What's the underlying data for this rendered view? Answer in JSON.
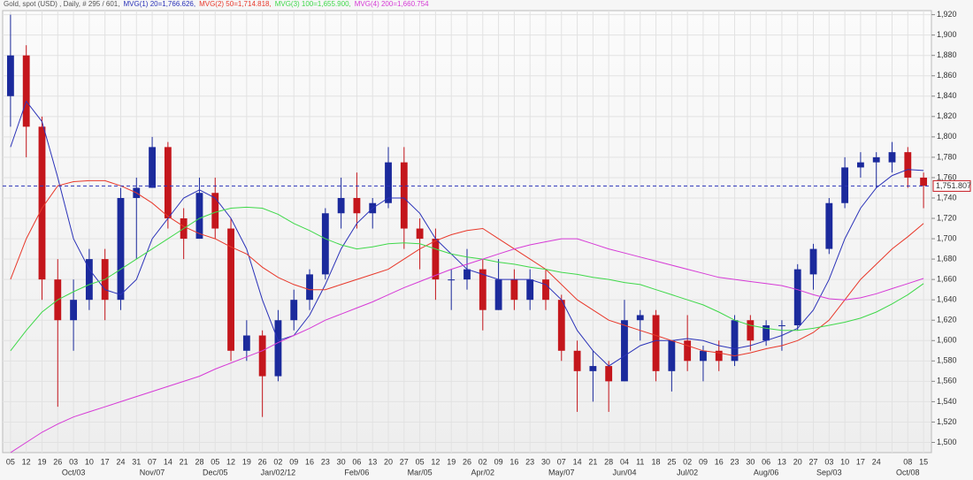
{
  "chart_data": {
    "type": "candlestick",
    "header": "Gold, spot (USD) , Daily, # 295 / 601,",
    "categories": [
      "05",
      "12",
      "19",
      "26",
      "03",
      "10",
      "17",
      "24",
      "31",
      "07",
      "14",
      "21",
      "28",
      "05",
      "12",
      "19",
      "26",
      "02",
      "09",
      "16",
      "23",
      "30",
      "06",
      "13",
      "20",
      "27",
      "05",
      "12",
      "19",
      "26",
      "02",
      "09",
      "16",
      "23",
      "30",
      "07",
      "14",
      "21",
      "28",
      "04",
      "11",
      "18",
      "25",
      "02",
      "09",
      "16",
      "23",
      "30",
      "06",
      "13",
      "20",
      "27",
      "03",
      "10",
      "17",
      "24",
      null,
      "08",
      "15"
    ],
    "months": [
      null,
      null,
      null,
      null,
      "Oct/03",
      null,
      null,
      null,
      null,
      "Nov/07",
      null,
      null,
      null,
      "Dec/05",
      null,
      null,
      null,
      "Jan/02/12",
      null,
      null,
      null,
      null,
      "Feb/06",
      null,
      null,
      null,
      "Mar/05",
      null,
      null,
      null,
      "Apr/02",
      null,
      null,
      null,
      null,
      "May/07",
      null,
      null,
      null,
      "Jun/04",
      null,
      null,
      null,
      "Jul/02",
      null,
      null,
      null,
      null,
      "Aug/06",
      null,
      null,
      null,
      "Sep/03",
      null,
      null,
      null,
      null,
      "Oct/08",
      null
    ],
    "open": [
      1840,
      1880,
      1810,
      1660,
      1620,
      1640,
      1680,
      1640,
      1740,
      1750,
      1790,
      1720,
      1700,
      1745,
      1710,
      1590,
      1605,
      1565,
      1620,
      1640,
      1665,
      1725,
      1740,
      1725,
      1735,
      1775,
      1710,
      1700,
      1660,
      1660,
      1670,
      1630,
      1660,
      1640,
      1660,
      1640,
      1590,
      1570,
      1575,
      1560,
      1620,
      1625,
      1570,
      1600,
      1580,
      1590,
      1580,
      1620,
      1600,
      1615,
      1615,
      1665,
      1690,
      1735,
      1770,
      1775,
      1775,
      1785,
      1760
    ],
    "high": [
      1920,
      1890,
      1820,
      1680,
      1660,
      1690,
      1690,
      1750,
      1760,
      1800,
      1795,
      1730,
      1760,
      1760,
      1720,
      1620,
      1610,
      1630,
      1650,
      1670,
      1730,
      1760,
      1765,
      1740,
      1790,
      1790,
      1720,
      1710,
      1670,
      1690,
      1680,
      1680,
      1670,
      1670,
      1670,
      1645,
      1600,
      1590,
      1580,
      1640,
      1630,
      1630,
      1600,
      1625,
      1595,
      1600,
      1625,
      1625,
      1620,
      1620,
      1675,
      1695,
      1740,
      1780,
      1785,
      1785,
      1795,
      1790,
      1765
    ],
    "low": [
      1810,
      1780,
      1640,
      1535,
      1590,
      1630,
      1620,
      1630,
      1680,
      1750,
      1710,
      1680,
      1700,
      1700,
      1580,
      1580,
      1525,
      1560,
      1610,
      1630,
      1660,
      1710,
      1710,
      1710,
      1730,
      1690,
      1670,
      1640,
      1630,
      1650,
      1610,
      1630,
      1630,
      1630,
      1630,
      1580,
      1530,
      1540,
      1530,
      1560,
      1600,
      1560,
      1550,
      1570,
      1560,
      1570,
      1575,
      1590,
      1595,
      1590,
      1610,
      1650,
      1685,
      1730,
      1760,
      1750,
      1765,
      1750,
      1730
    ],
    "close": [
      1880,
      1810,
      1660,
      1620,
      1640,
      1680,
      1640,
      1740,
      1750,
      1790,
      1720,
      1700,
      1745,
      1710,
      1590,
      1605,
      1565,
      1620,
      1640,
      1665,
      1725,
      1740,
      1725,
      1735,
      1775,
      1710,
      1700,
      1660,
      1660,
      1670,
      1630,
      1660,
      1640,
      1660,
      1640,
      1590,
      1570,
      1575,
      1560,
      1620,
      1625,
      1570,
      1600,
      1580,
      1590,
      1580,
      1620,
      1600,
      1615,
      1615,
      1670,
      1690,
      1735,
      1770,
      1775,
      1780,
      1785,
      1760,
      1752
    ],
    "up_color": "#1b2a9c",
    "down_color": "#c4161c",
    "moving_averages": [
      {
        "name": "MVG(1) 20=1,766.626,",
        "color": "#2a32b8",
        "values": [
          1790,
          1835,
          1815,
          1760,
          1700,
          1670,
          1650,
          1645,
          1660,
          1700,
          1720,
          1740,
          1748,
          1740,
          1720,
          1690,
          1640,
          1600,
          1605,
          1625,
          1655,
          1690,
          1715,
          1730,
          1740,
          1740,
          1725,
          1700,
          1685,
          1670,
          1665,
          1660,
          1660,
          1660,
          1655,
          1640,
          1610,
          1590,
          1575,
          1585,
          1595,
          1600,
          1600,
          1602,
          1600,
          1595,
          1592,
          1595,
          1600,
          1605,
          1612,
          1630,
          1660,
          1700,
          1730,
          1750,
          1762,
          1768,
          1767
        ]
      },
      {
        "name": "MVG(2) 50=1,714.818,",
        "color": "#e8382a",
        "values": [
          1660,
          1700,
          1730,
          1752,
          1756,
          1757,
          1757,
          1752,
          1745,
          1735,
          1722,
          1712,
          1705,
          1700,
          1692,
          1685,
          1672,
          1662,
          1655,
          1650,
          1650,
          1655,
          1660,
          1665,
          1670,
          1680,
          1690,
          1698,
          1704,
          1708,
          1710,
          1700,
          1690,
          1680,
          1670,
          1655,
          1640,
          1630,
          1620,
          1615,
          1610,
          1605,
          1600,
          1595,
          1590,
          1588,
          1585,
          1588,
          1592,
          1595,
          1600,
          1608,
          1620,
          1640,
          1660,
          1675,
          1690,
          1702,
          1715
        ]
      },
      {
        "name": "MVG(3) 100=1,655.900,",
        "color": "#3fd84a",
        "values": [
          1590,
          1610,
          1628,
          1640,
          1648,
          1655,
          1660,
          1670,
          1680,
          1690,
          1700,
          1710,
          1720,
          1726,
          1730,
          1731,
          1730,
          1724,
          1715,
          1708,
          1700,
          1694,
          1690,
          1692,
          1695,
          1696,
          1695,
          1690,
          1685,
          1682,
          1680,
          1677,
          1675,
          1672,
          1670,
          1667,
          1665,
          1662,
          1660,
          1657,
          1655,
          1650,
          1645,
          1640,
          1635,
          1628,
          1620,
          1615,
          1612,
          1610,
          1610,
          1612,
          1615,
          1618,
          1622,
          1628,
          1636,
          1645,
          1656
        ]
      },
      {
        "name": "MVG(4) 200=1,660.754",
        "color": "#d63ad6",
        "values": [
          1490,
          1500,
          1510,
          1518,
          1525,
          1530,
          1535,
          1540,
          1545,
          1550,
          1555,
          1560,
          1565,
          1572,
          1578,
          1584,
          1590,
          1598,
          1605,
          1612,
          1620,
          1626,
          1632,
          1638,
          1645,
          1652,
          1658,
          1664,
          1670,
          1675,
          1680,
          1685,
          1690,
          1694,
          1697,
          1700,
          1700,
          1695,
          1690,
          1686,
          1682,
          1678,
          1674,
          1670,
          1666,
          1662,
          1660,
          1658,
          1656,
          1654,
          1650,
          1645,
          1641,
          1640,
          1642,
          1646,
          1651,
          1656,
          1661
        ]
      }
    ],
    "last": {
      "value": 1751.807,
      "label": "1,751.807"
    },
    "ylim": [
      1490,
      1924
    ],
    "yticks": [
      {
        "value": 1500,
        "label": "1,500"
      },
      {
        "value": 1520,
        "label": "1,520"
      },
      {
        "value": 1540,
        "label": "1,540"
      },
      {
        "value": 1560,
        "label": "1,560"
      },
      {
        "value": 1580,
        "label": "1,580"
      },
      {
        "value": 1600,
        "label": "1,600"
      },
      {
        "value": 1620,
        "label": "1,620"
      },
      {
        "value": 1640,
        "label": "1,640"
      },
      {
        "value": 1660,
        "label": "1,660"
      },
      {
        "value": 1680,
        "label": "1,680"
      },
      {
        "value": 1700,
        "label": "1,700"
      },
      {
        "value": 1720,
        "label": "1,720"
      },
      {
        "value": 1740,
        "label": "1,740"
      },
      {
        "value": 1760,
        "label": "1,760"
      },
      {
        "value": 1780,
        "label": "1,780"
      },
      {
        "value": 1800,
        "label": "1,800"
      },
      {
        "value": 1820,
        "label": "1,820"
      },
      {
        "value": 1840,
        "label": "1,840"
      },
      {
        "value": 1860,
        "label": "1,860"
      },
      {
        "value": 1880,
        "label": "1,880"
      },
      {
        "value": 1900,
        "label": "1,900"
      },
      {
        "value": 1920,
        "label": "1,920"
      }
    ],
    "grid": true
  }
}
